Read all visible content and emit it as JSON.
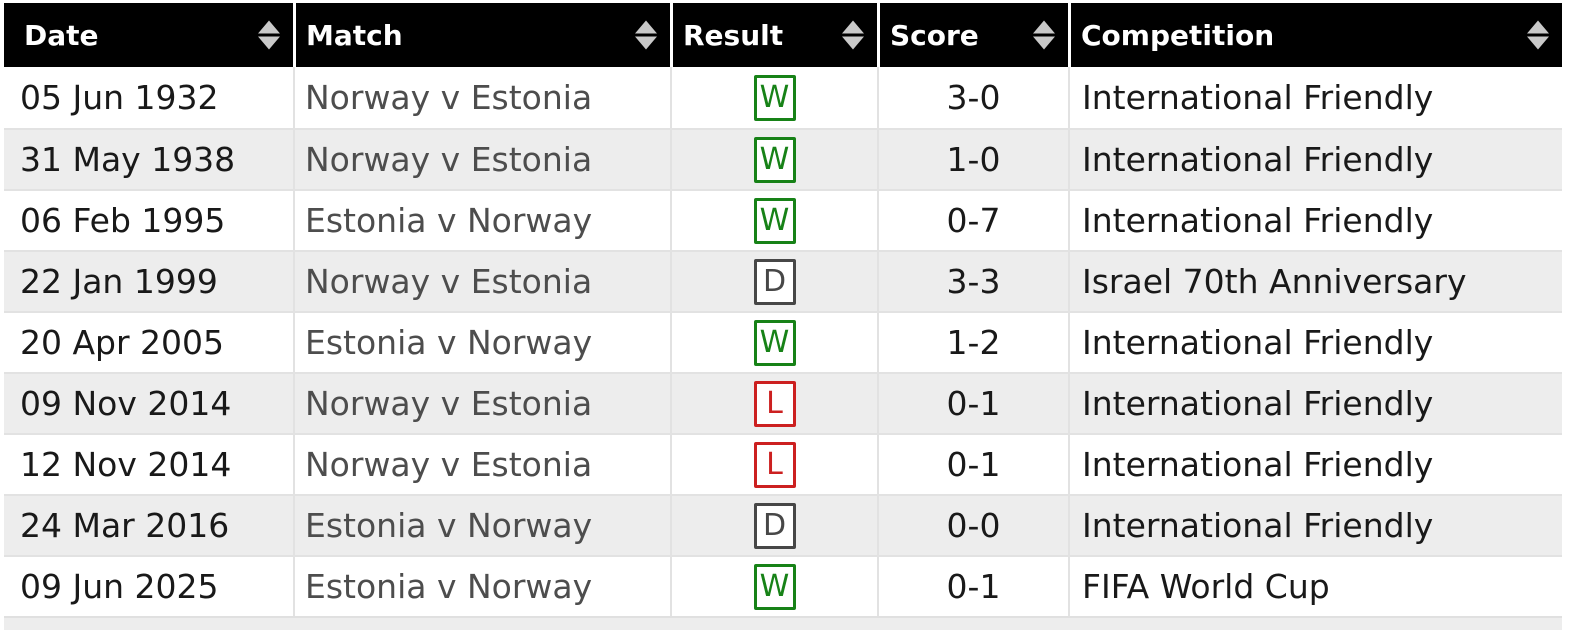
{
  "table": {
    "columns": [
      {
        "key": "date",
        "label": "Date"
      },
      {
        "key": "match",
        "label": "Match"
      },
      {
        "key": "result",
        "label": "Result"
      },
      {
        "key": "score",
        "label": "Score"
      },
      {
        "key": "competition",
        "label": "Competition"
      }
    ],
    "rows": [
      {
        "date": "05 Jun 1932",
        "match": "Norway v Estonia",
        "result": "W",
        "score": "3-0",
        "competition": "International Friendly"
      },
      {
        "date": "31 May 1938",
        "match": "Norway v Estonia",
        "result": "W",
        "score": "1-0",
        "competition": "International Friendly"
      },
      {
        "date": "06 Feb 1995",
        "match": "Estonia v Norway",
        "result": "W",
        "score": "0-7",
        "competition": "International Friendly"
      },
      {
        "date": "22 Jan 1999",
        "match": "Norway v Estonia",
        "result": "D",
        "score": "3-3",
        "competition": "Israel 70th Anniversary"
      },
      {
        "date": "20 Apr 2005",
        "match": "Estonia v Norway",
        "result": "W",
        "score": "1-2",
        "competition": "International Friendly"
      },
      {
        "date": "09 Nov 2014",
        "match": "Norway v Estonia",
        "result": "L",
        "score": "0-1",
        "competition": "International Friendly"
      },
      {
        "date": "12 Nov 2014",
        "match": "Norway v Estonia",
        "result": "L",
        "score": "0-1",
        "competition": "International Friendly"
      },
      {
        "date": "24 Mar 2016",
        "match": "Estonia v Norway",
        "result": "D",
        "score": "0-0",
        "competition": "International Friendly"
      },
      {
        "date": "09 Jun 2025",
        "match": "Estonia v Norway",
        "result": "W",
        "score": "0-1",
        "competition": "FIFA World Cup"
      }
    ],
    "result_colors": {
      "W": "#178217",
      "D": "#474747",
      "L": "#cc2020"
    },
    "icons": {
      "sort": "up-down-triangles",
      "sort_color": "#c9c9c9"
    },
    "colors": {
      "header_bg": "#000000",
      "header_text": "#ffffff",
      "row_alt_bg": "#ededed",
      "grid_line": "#e2e2e2",
      "date_text": "#191919",
      "match_text": "#4d4d4d"
    }
  }
}
